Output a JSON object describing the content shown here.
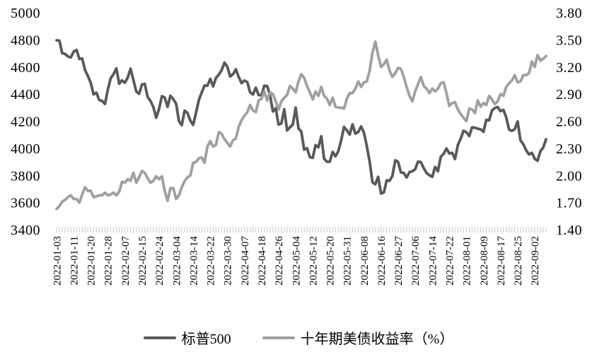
{
  "chart_data": {
    "type": "line",
    "grid": false,
    "legend_position": "bottom",
    "x_label_step": 6,
    "x_labels": [
      "2022-01-03",
      "2022-01-11",
      "2022-01-20",
      "2022-01-28",
      "2022-02-07",
      "2022-02-15",
      "2022-02-24",
      "2022-03-04",
      "2022-03-14",
      "2022-03-22",
      "2022-03-30",
      "2022-04-07",
      "2022-04-18",
      "2022-04-26",
      "2022-05-04",
      "2022-05-12",
      "2022-05-20",
      "2022-05-31",
      "2022-06-08",
      "2022-06-16",
      "2022-06-27",
      "2022-07-06",
      "2022-07-14",
      "2022-07-22",
      "2022-08-01",
      "2022-08-09",
      "2022-08-17",
      "2022-08-25",
      "2022-09-02"
    ],
    "left_axis": {
      "ticks": [
        "5000",
        "4800",
        "4600",
        "4400",
        "4200",
        "4000",
        "3800",
        "3600",
        "3400"
      ],
      "lim": [
        3400,
        5000
      ]
    },
    "right_axis": {
      "ticks": [
        "3.80",
        "3.50",
        "3.20",
        "2.90",
        "2.60",
        "2.30",
        "2.00",
        "1.70",
        "1.40"
      ],
      "lim": [
        1.4,
        3.8
      ]
    },
    "tick_color": "#d2d2d2",
    "series": [
      {
        "name": "标普500",
        "axis": "left",
        "color": "#595959",
        "values": [
          4797,
          4794,
          4701,
          4696,
          4677,
          4670,
          4713,
          4726,
          4659,
          4663,
          4577,
          4533,
          4483,
          4398,
          4410,
          4356,
          4350,
          4327,
          4432,
          4516,
          4547,
          4589,
          4477,
          4501,
          4484,
          4522,
          4587,
          4504,
          4419,
          4402,
          4471,
          4475,
          4380,
          4349,
          4305,
          4226,
          4289,
          4385,
          4374,
          4306,
          4387,
          4363,
          4329,
          4201,
          4171,
          4278,
          4260,
          4204,
          4173,
          4262,
          4358,
          4412,
          4463,
          4461,
          4512,
          4456,
          4520,
          4543,
          4576,
          4632,
          4602,
          4530,
          4546,
          4583,
          4525,
          4481,
          4500,
          4488,
          4413,
          4397,
          4447,
          4393,
          4392,
          4462,
          4459,
          4394,
          4272,
          4296,
          4175,
          4184,
          4288,
          4132,
          4155,
          4175,
          4300,
          4147,
          4123,
          3991,
          4001,
          3935,
          3930,
          4024,
          4008,
          4089,
          3924,
          3901,
          3901,
          3974,
          3941,
          3979,
          4058,
          4158,
          4132,
          4101,
          4177,
          4109,
          4121,
          4161,
          4116,
          4018,
          3901,
          3750,
          3735,
          3790,
          3667,
          3675,
          3765,
          3760,
          3796,
          3912,
          3900,
          3822,
          3819,
          3785,
          3825,
          3831,
          3845,
          3903,
          3899,
          3854,
          3819,
          3802,
          3790,
          3863,
          3831,
          3937,
          3960,
          3999,
          3962,
          3967,
          3921,
          4024,
          4072,
          4130,
          4119,
          4091,
          4155,
          4152,
          4145,
          4140,
          4122,
          4210,
          4207,
          4280,
          4297,
          4305,
          4274,
          4284,
          4228,
          4138,
          4129,
          4141,
          4199,
          4058,
          4031,
          3986,
          3955,
          3967,
          3924,
          3908,
          3979,
          4006,
          4067
        ]
      },
      {
        "name": "十年期美债收益率（%）",
        "axis": "right",
        "color": "#a0a0a0",
        "values": [
          1.63,
          1.66,
          1.71,
          1.73,
          1.76,
          1.78,
          1.74,
          1.74,
          1.7,
          1.79,
          1.87,
          1.83,
          1.83,
          1.76,
          1.77,
          1.78,
          1.78,
          1.81,
          1.78,
          1.79,
          1.81,
          1.78,
          1.82,
          1.93,
          1.92,
          1.96,
          1.94,
          2.03,
          1.92,
          1.98,
          2.05,
          2.03,
          1.97,
          1.92,
          1.94,
          1.99,
          1.96,
          1.99,
          1.83,
          1.72,
          1.86,
          1.86,
          1.74,
          1.78,
          1.87,
          1.94,
          1.98,
          2.0,
          2.14,
          2.15,
          2.19,
          2.2,
          2.14,
          2.32,
          2.38,
          2.32,
          2.34,
          2.48,
          2.46,
          2.4,
          2.36,
          2.32,
          2.39,
          2.41,
          2.54,
          2.61,
          2.66,
          2.7,
          2.78,
          2.72,
          2.7,
          2.83,
          2.85,
          2.93,
          2.83,
          2.92,
          2.9,
          2.82,
          2.73,
          2.82,
          2.86,
          2.89,
          2.99,
          2.96,
          2.92,
          3.04,
          3.12,
          3.08,
          2.99,
          2.92,
          2.84,
          2.93,
          2.88,
          2.98,
          2.88,
          2.85,
          2.78,
          2.86,
          2.76,
          2.75,
          2.75,
          2.74,
          2.85,
          2.91,
          2.91,
          2.96,
          3.04,
          2.98,
          3.03,
          3.04,
          3.16,
          3.36,
          3.48,
          3.33,
          3.2,
          3.23,
          3.28,
          3.16,
          3.09,
          3.13,
          3.19,
          3.18,
          3.09,
          2.98,
          2.88,
          2.82,
          2.93,
          3.01,
          3.09,
          2.99,
          2.96,
          2.91,
          2.96,
          2.93,
          2.96,
          3.02,
          3.03,
          2.91,
          2.77,
          2.8,
          2.81,
          2.73,
          2.68,
          2.64,
          2.6,
          2.74,
          2.73,
          2.69,
          2.83,
          2.76,
          2.8,
          2.78,
          2.88,
          2.84,
          2.79,
          2.82,
          2.9,
          2.88,
          2.98,
          3.02,
          3.05,
          3.11,
          3.03,
          3.04,
          3.11,
          3.11,
          3.13,
          3.26,
          3.2,
          3.33,
          3.27,
          3.29,
          3.32
        ]
      }
    ]
  },
  "legend": {
    "items": [
      {
        "label": "标普500",
        "color": "#595959"
      },
      {
        "label": "十年期美债收益率（%）",
        "color": "#a0a0a0"
      }
    ]
  }
}
